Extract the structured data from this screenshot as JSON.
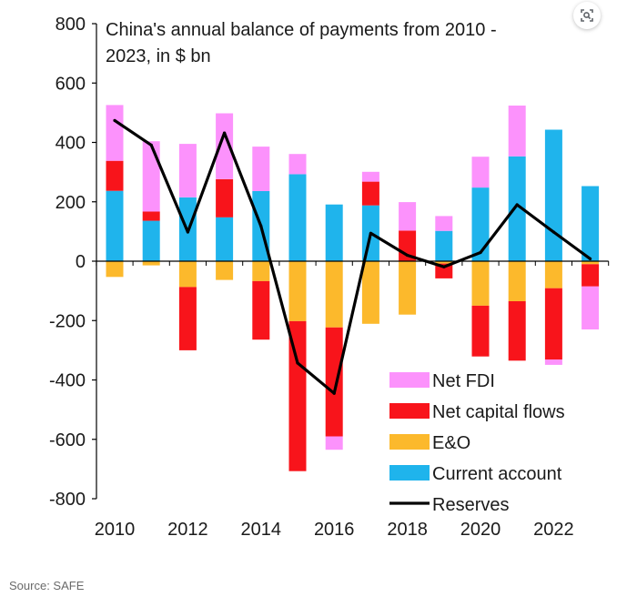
{
  "source_text": "Source: SAFE",
  "lens_button": {
    "icon": "image-search-icon"
  },
  "chart_data": {
    "type": "bar",
    "title": [
      "China's annual balance of payments from 2010 -",
      "2023, in $ bn"
    ],
    "xlabel": "",
    "ylabel": "",
    "ylim": [
      -800,
      800
    ],
    "yticks": [
      800,
      600,
      400,
      200,
      0,
      -200,
      -400,
      -600,
      -800
    ],
    "ytick_labels": [
      "800",
      "600",
      "400",
      "200",
      "0",
      "-200",
      "-400",
      "-600",
      "-800"
    ],
    "years": [
      2010,
      2011,
      2012,
      2013,
      2014,
      2015,
      2016,
      2017,
      2018,
      2019,
      2020,
      2021,
      2022,
      2023
    ],
    "xtick_labels": [
      "2010",
      "2012",
      "2014",
      "2016",
      "2018",
      "2020",
      "2022"
    ],
    "grid": false,
    "legend_position": "bottom-right",
    "series": [
      {
        "name": "Current account",
        "kind": "stacked-bar",
        "color": "#1fb4ec",
        "values": [
          237,
          136,
          215,
          148,
          236,
          293,
          191,
          188,
          0,
          102,
          248,
          353,
          443,
          253
        ]
      },
      {
        "name": "E&O",
        "kind": "stacked-bar",
        "color": "#fcb92c",
        "values": [
          -53,
          -14,
          -87,
          -63,
          -67,
          -202,
          -223,
          -211,
          -180,
          -8,
          -150,
          -135,
          -91,
          -10
        ]
      },
      {
        "name": "Net capital flows",
        "kind": "stacked-bar",
        "color": "#f8141b",
        "values": [
          101,
          31,
          -213,
          128,
          -197,
          -505,
          -367,
          80,
          103,
          -50,
          -171,
          -200,
          -240,
          -75
        ]
      },
      {
        "name": "Net FDI",
        "kind": "stacked-bar",
        "color": "#fc92fc",
        "values": [
          188,
          237,
          180,
          222,
          150,
          68,
          -45,
          33,
          96,
          50,
          104,
          171,
          -18,
          -145
        ]
      },
      {
        "name": "Reserves",
        "kind": "line",
        "color": "#000000",
        "values": [
          474,
          391,
          98,
          432,
          118,
          -343,
          -445,
          94,
          20,
          -19,
          29,
          190,
          98,
          8
        ]
      }
    ]
  }
}
